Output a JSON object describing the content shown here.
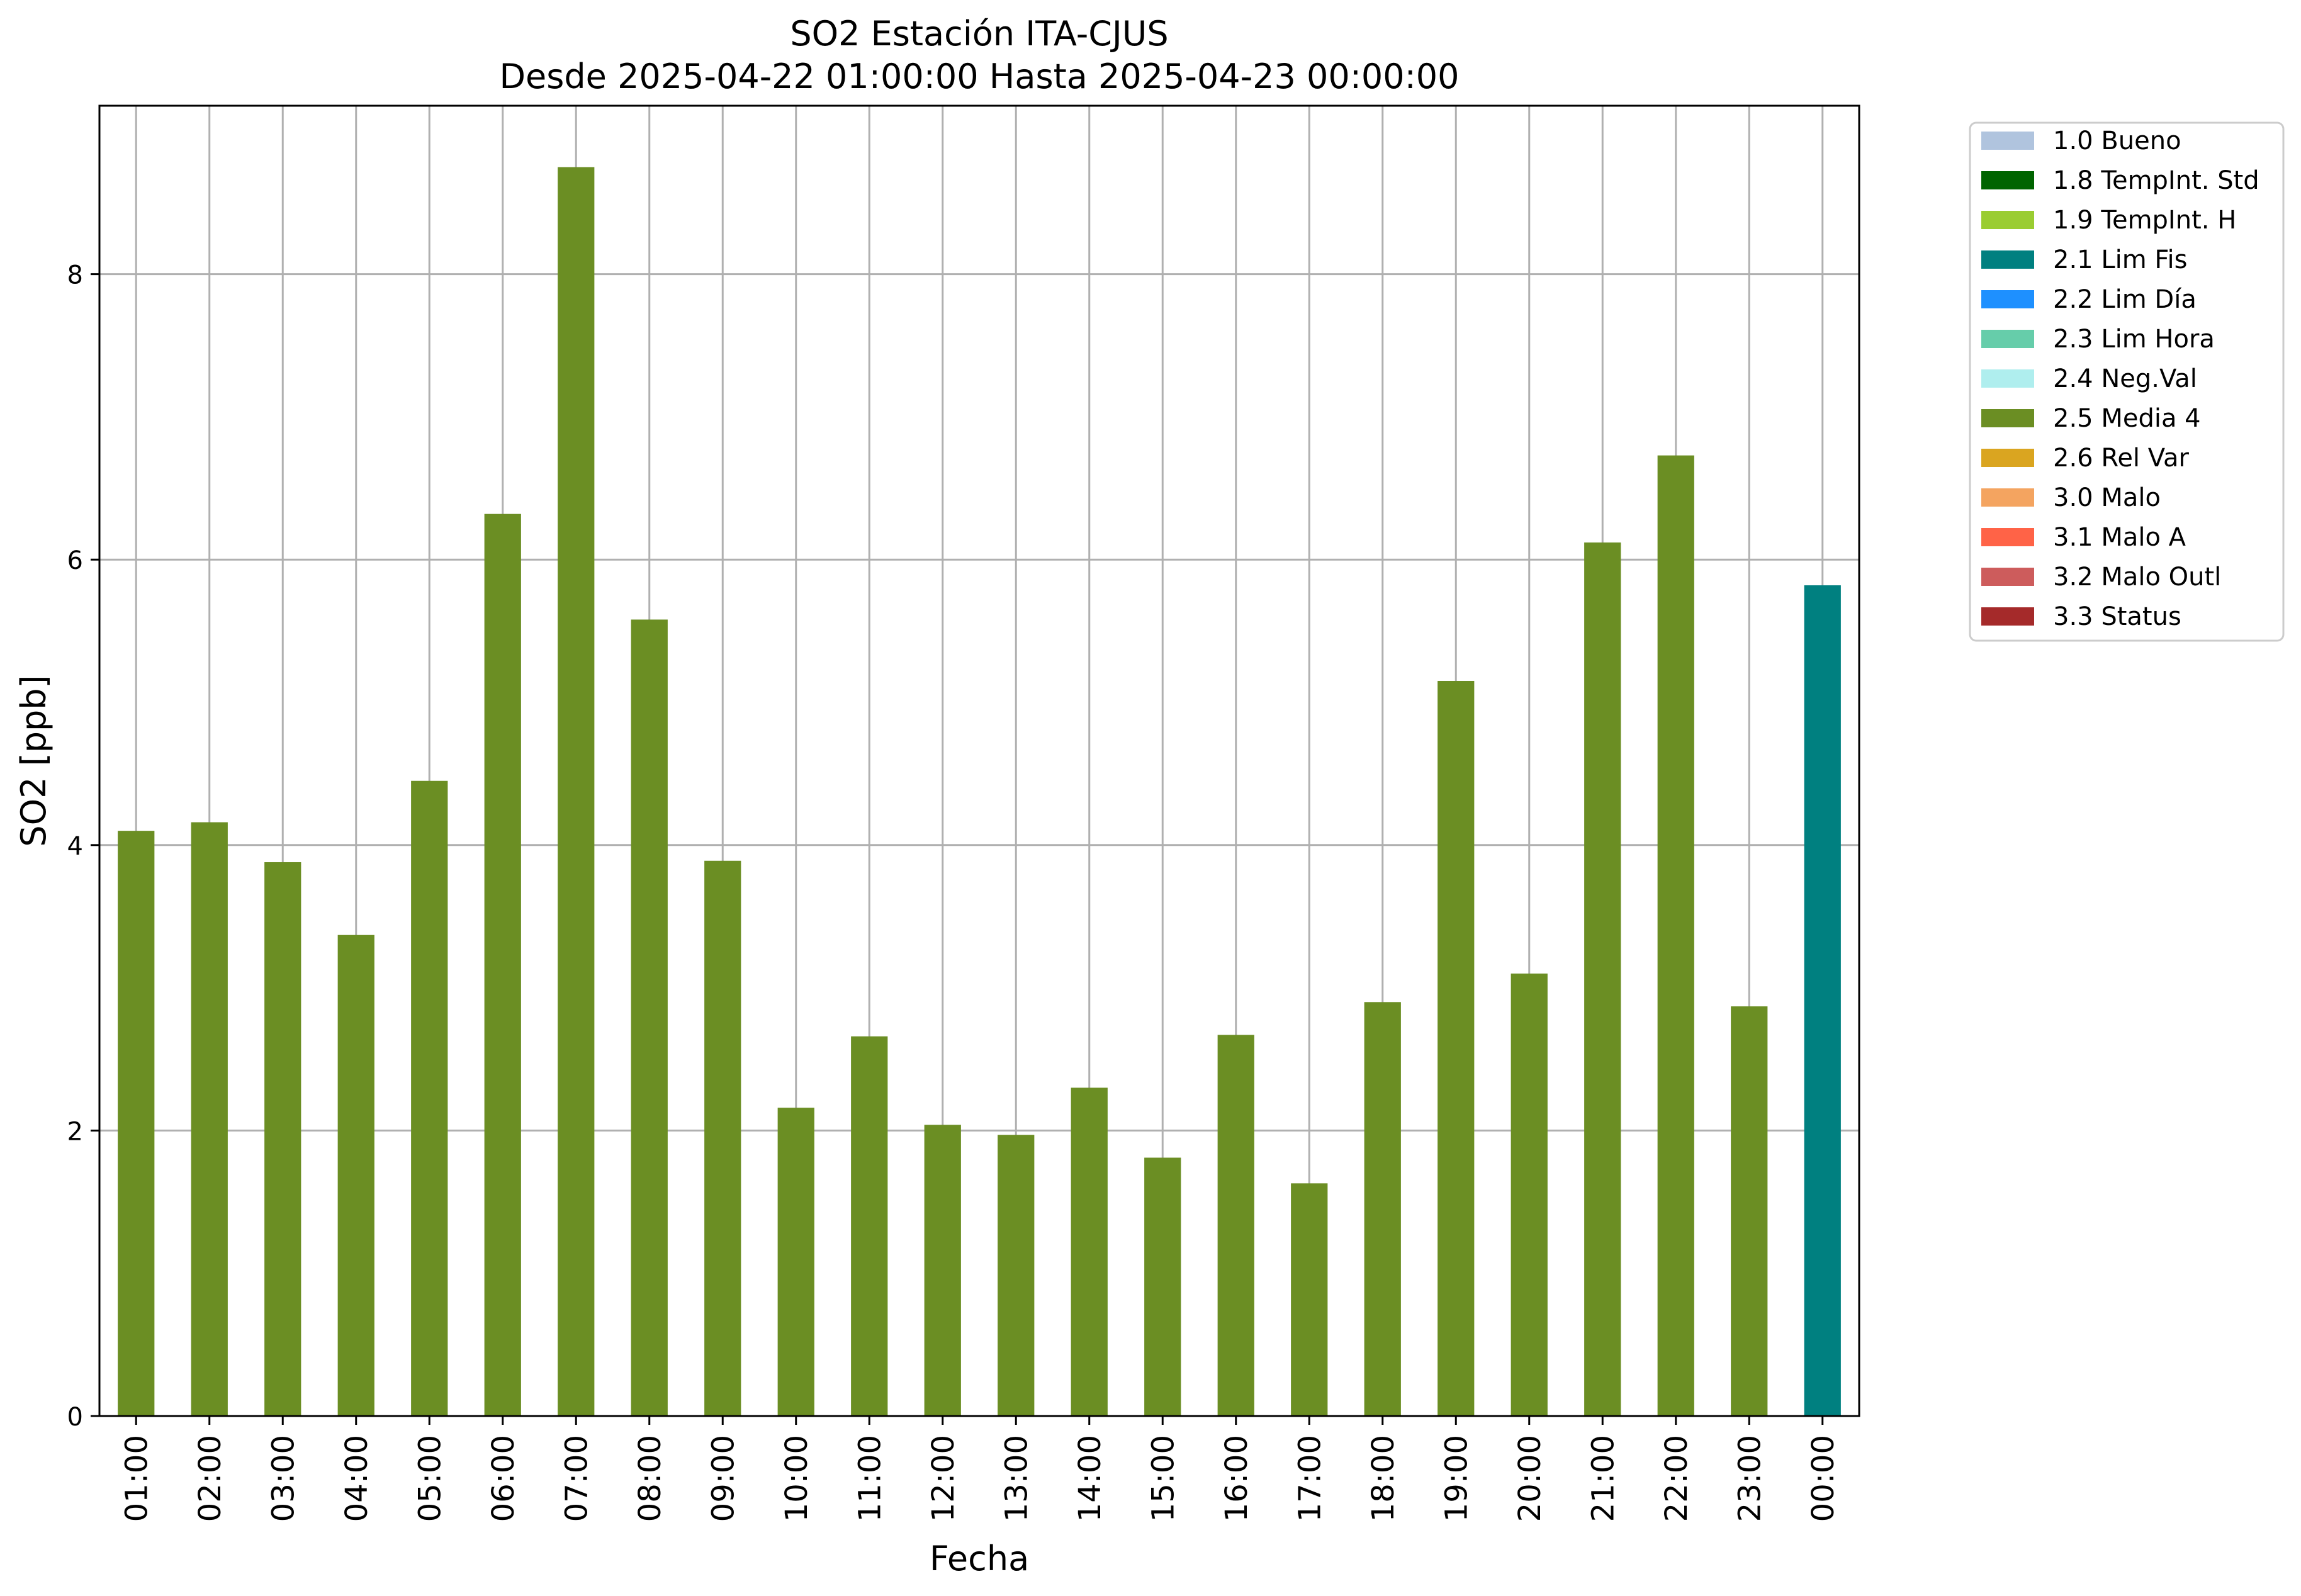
{
  "chart_data": {
    "type": "bar",
    "title": "SO2 Estación ITA-CJUS",
    "subtitle": "Desde 2025-04-22 01:00:00 Hasta 2025-04-23 00:00:00",
    "xlabel": "Fecha",
    "ylabel": "SO2 [ppb]",
    "ylim": [
      0,
      9.18
    ],
    "yticks": [
      0,
      2,
      4,
      6,
      8
    ],
    "grid": true,
    "legend_position": "outside-right",
    "categories": [
      "01:00",
      "02:00",
      "03:00",
      "04:00",
      "05:00",
      "06:00",
      "07:00",
      "08:00",
      "09:00",
      "10:00",
      "11:00",
      "12:00",
      "13:00",
      "14:00",
      "15:00",
      "16:00",
      "17:00",
      "18:00",
      "19:00",
      "20:00",
      "21:00",
      "22:00",
      "23:00",
      "00:00"
    ],
    "values": [
      4.1,
      4.16,
      3.88,
      3.37,
      4.45,
      6.32,
      8.75,
      5.58,
      3.89,
      2.16,
      2.66,
      2.04,
      1.97,
      2.3,
      1.81,
      2.67,
      1.63,
      2.9,
      5.15,
      3.1,
      6.12,
      6.73,
      2.87,
      5.82
    ],
    "flags": [
      "2.5 Media 4",
      "2.5 Media 4",
      "2.5 Media 4",
      "2.5 Media 4",
      "2.5 Media 4",
      "2.5 Media 4",
      "2.5 Media 4",
      "2.5 Media 4",
      "2.5 Media 4",
      "2.5 Media 4",
      "2.5 Media 4",
      "2.5 Media 4",
      "2.5 Media 4",
      "2.5 Media 4",
      "2.5 Media 4",
      "2.5 Media 4",
      "2.5 Media 4",
      "2.5 Media 4",
      "2.5 Media 4",
      "2.5 Media 4",
      "2.5 Media 4",
      "2.5 Media 4",
      "2.5 Media 4",
      "2.1 Lim Fis"
    ],
    "legend": [
      {
        "label": "1.0 Bueno",
        "color": "#b0c4de"
      },
      {
        "label": "1.8 TempInt. Std",
        "color": "#006400"
      },
      {
        "label": "1.9 TempInt. H",
        "color": "#9acd32"
      },
      {
        "label": "2.1 Lim Fis",
        "color": "#008080"
      },
      {
        "label": "2.2 Lim Día",
        "color": "#1e90ff"
      },
      {
        "label": "2.3 Lim Hora",
        "color": "#66cdaa"
      },
      {
        "label": "2.4 Neg.Val",
        "color": "#afeeee"
      },
      {
        "label": "2.5 Media 4",
        "color": "#6b8e23"
      },
      {
        "label": "2.6 Rel Var",
        "color": "#daa520"
      },
      {
        "label": "3.0 Malo",
        "color": "#f4a460"
      },
      {
        "label": "3.1 Malo A",
        "color": "#ff6347"
      },
      {
        "label": "3.2 Malo Outl",
        "color": "#cd5c5c"
      },
      {
        "label": "3.3 Status",
        "color": "#a52a2a"
      }
    ]
  }
}
